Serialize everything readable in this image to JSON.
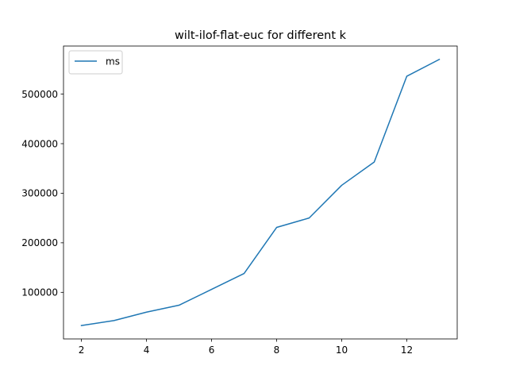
{
  "chart_data": {
    "type": "line",
    "title": "wilt-ilof-flat-euc for different k",
    "xlabel": "",
    "ylabel": "",
    "x_ticks": [
      2,
      4,
      6,
      8,
      10,
      12
    ],
    "y_ticks": [
      100000,
      200000,
      300000,
      400000,
      500000
    ],
    "x_tick_labels": [
      "2",
      "4",
      "6",
      "8",
      "10",
      "12"
    ],
    "y_tick_labels": [
      "100000",
      "200000",
      "300000",
      "400000",
      "500000"
    ],
    "xlim": [
      1.45,
      13.55
    ],
    "ylim": [
      6000,
      597000
    ],
    "grid": false,
    "legend": {
      "position": "upper left"
    },
    "series": [
      {
        "name": "ms",
        "color": "#1f77b4",
        "x": [
          2,
          3,
          4,
          5,
          6,
          7,
          8,
          9,
          10,
          11,
          12,
          13
        ],
        "values": [
          33000,
          43000,
          60000,
          74000,
          106000,
          138000,
          231000,
          250000,
          316000,
          363000,
          536000,
          570000
        ]
      }
    ]
  }
}
